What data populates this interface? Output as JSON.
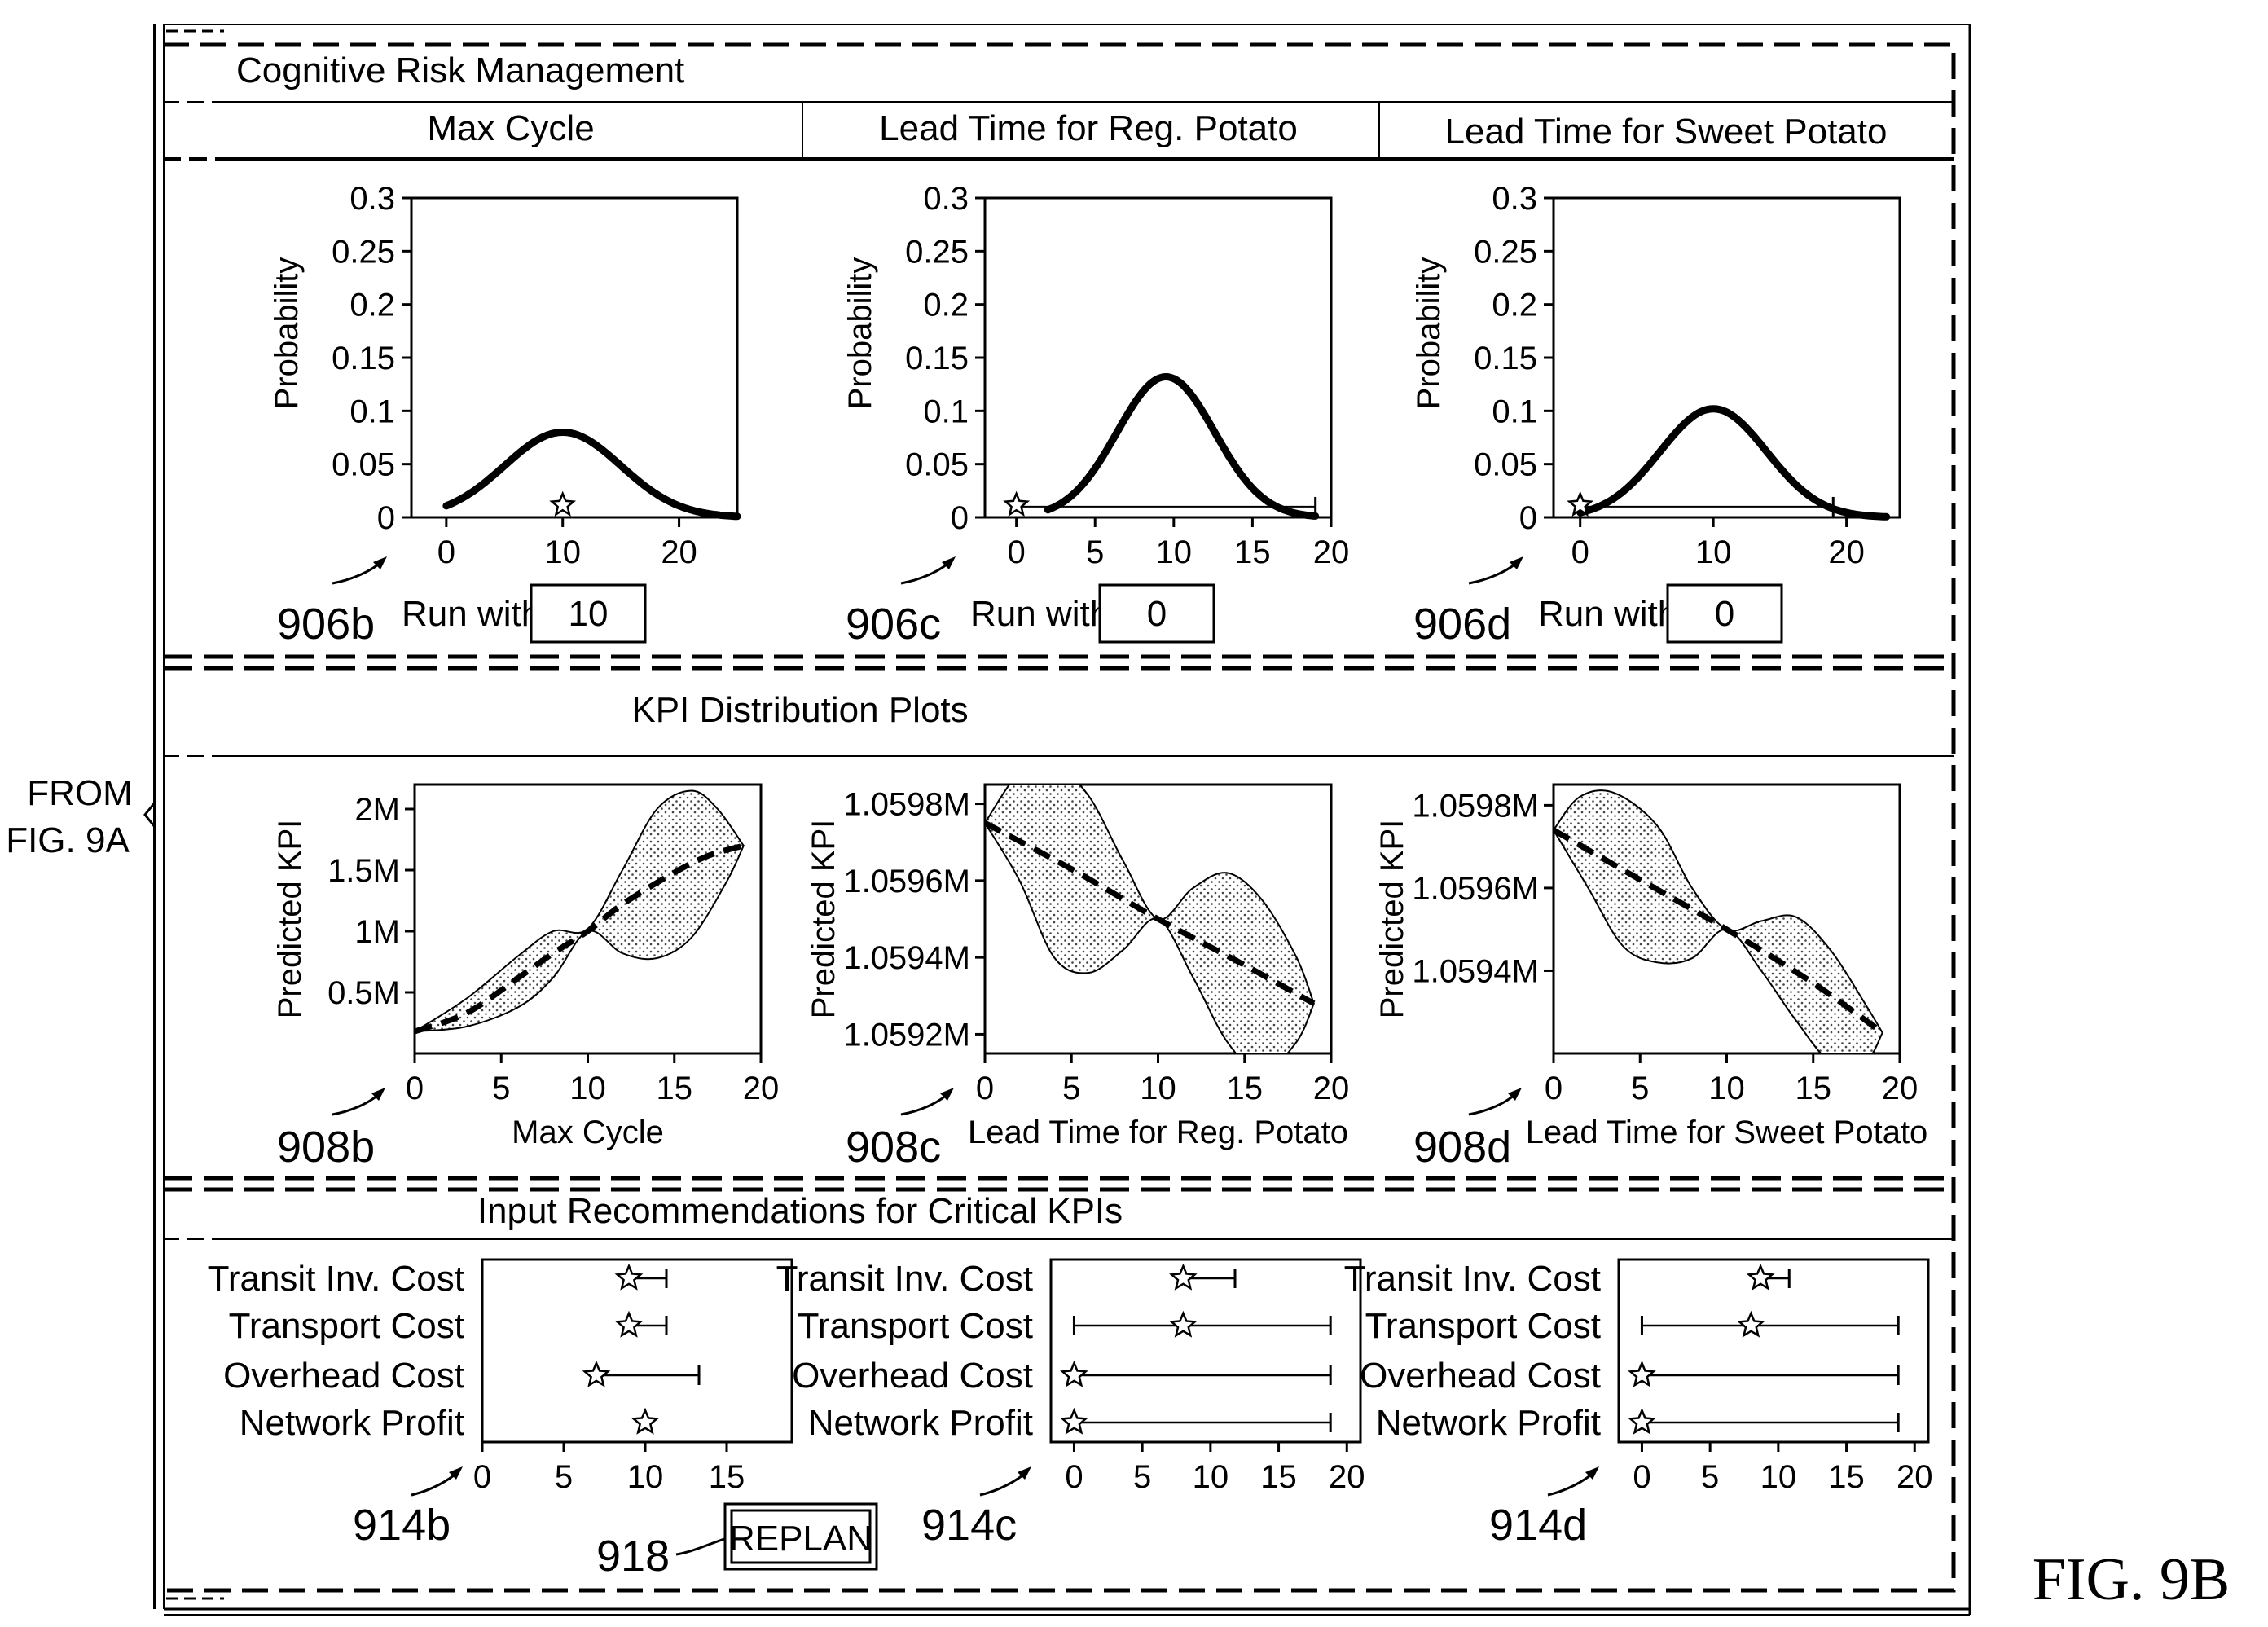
{
  "from_note": [
    "FROM",
    "FIG. 9A"
  ],
  "fig_label": "FIG. 9B",
  "header": {
    "title": "Cognitive Risk Management",
    "columns": [
      "Max Cycle",
      "Lead Time for Reg. Potato",
      "Lead Time for Sweet Potato"
    ]
  },
  "risk_panels": [
    {
      "ref": "906b",
      "run_label": "Run with",
      "run_value": "10"
    },
    {
      "ref": "906c",
      "run_label": "Run with",
      "run_value": "0"
    },
    {
      "ref": "906d",
      "run_label": "Run with",
      "run_value": "0"
    }
  ],
  "kpi_section": {
    "title": "KPI Distribution Plots"
  },
  "kpi_panels": [
    {
      "ref": "908b"
    },
    {
      "ref": "908c"
    },
    {
      "ref": "908d"
    }
  ],
  "rec_section": {
    "title": "Input Recommendations for Critical KPIs"
  },
  "rec_panels": [
    {
      "ref": "914b"
    },
    {
      "ref": "914c"
    },
    {
      "ref": "914d"
    }
  ],
  "replan": {
    "ref": "918",
    "label": "REPLAN"
  },
  "chart_data": [
    {
      "type": "line",
      "ylabel": "Probability",
      "xlim": [
        -3,
        25
      ],
      "ylim": [
        0,
        0.3
      ],
      "xticks": [
        0,
        10,
        20
      ],
      "yticks": [
        "0",
        "0.05",
        "0.1",
        "0.15",
        "0.2",
        "0.25",
        "0.3"
      ],
      "series": [
        {
          "curve": "normal",
          "mean": 10,
          "sd": 5,
          "peak": 0.08,
          "x_range": [
            0,
            25
          ]
        }
      ],
      "marker": {
        "x": 10,
        "y": 0.01
      },
      "range_bar": null
    },
    {
      "type": "line",
      "ylabel": "Probability",
      "xlim": [
        -2,
        20
      ],
      "ylim": [
        0,
        0.3
      ],
      "xticks": [
        0,
        5,
        10,
        15,
        20
      ],
      "yticks": [
        "0",
        "0.05",
        "0.1",
        "0.15",
        "0.2",
        "0.25",
        "0.3"
      ],
      "series": [
        {
          "curve": "normal",
          "mean": 9.5,
          "sd": 3.1,
          "peak": 0.132,
          "x_range": [
            2,
            19
          ]
        }
      ],
      "marker": {
        "x": 0,
        "y": 0.01
      },
      "range_bar": {
        "x0": 0,
        "x1": 19,
        "y": 0.01
      }
    },
    {
      "type": "line",
      "ylabel": "Probability",
      "xlim": [
        -2,
        24
      ],
      "ylim": [
        0,
        0.3
      ],
      "xticks": [
        0,
        10,
        20
      ],
      "yticks": [
        "0",
        "0.05",
        "0.1",
        "0.15",
        "0.2",
        "0.25",
        "0.3"
      ],
      "series": [
        {
          "curve": "normal",
          "mean": 10,
          "sd": 4,
          "peak": 0.102,
          "x_range": [
            0,
            23
          ]
        }
      ],
      "marker": {
        "x": 0,
        "y": 0.01
      },
      "range_bar": {
        "x0": 0,
        "x1": 19,
        "y": 0.01
      }
    },
    {
      "type": "area",
      "xlabel": "Max Cycle",
      "ylabel": "Predicted KPI",
      "xlim": [
        0,
        20
      ],
      "ylim": [
        0,
        2.2
      ],
      "xticks": [
        0,
        5,
        10,
        15,
        20
      ],
      "yticks": [
        {
          "v": 0.5,
          "label": "0.5M"
        },
        {
          "v": 1.0,
          "label": "1M"
        },
        {
          "v": 1.5,
          "label": "1.5M"
        },
        {
          "v": 2.0,
          "label": "2M"
        }
      ],
      "mean_line": [
        [
          0,
          0.18
        ],
        [
          3,
          0.33
        ],
        [
          6,
          0.62
        ],
        [
          8,
          0.82
        ],
        [
          10,
          1.0
        ],
        [
          12,
          1.22
        ],
        [
          15,
          1.48
        ],
        [
          17,
          1.62
        ],
        [
          19,
          1.7
        ]
      ],
      "upper": [
        [
          0,
          0.18
        ],
        [
          3,
          0.45
        ],
        [
          6,
          0.8
        ],
        [
          8,
          1.0
        ],
        [
          10,
          1.02
        ],
        [
          12,
          1.5
        ],
        [
          14,
          2.0
        ],
        [
          16,
          2.15
        ],
        [
          17.5,
          2.0
        ],
        [
          19,
          1.7
        ]
      ],
      "lower": [
        [
          0,
          0.18
        ],
        [
          3,
          0.22
        ],
        [
          6,
          0.38
        ],
        [
          8,
          0.62
        ],
        [
          10,
          1.0
        ],
        [
          12,
          0.82
        ],
        [
          14,
          0.78
        ],
        [
          16,
          0.95
        ],
        [
          18,
          1.4
        ],
        [
          19,
          1.7
        ]
      ]
    },
    {
      "type": "area",
      "xlabel": "Lead Time for Reg. Potato",
      "ylabel": "Predicted KPI",
      "xlim": [
        0,
        20
      ],
      "ylim": [
        1.05915,
        1.05985
      ],
      "xticks": [
        0,
        5,
        10,
        15,
        20
      ],
      "yticks": [
        {
          "v": 1.0592,
          "label": "1.0592M"
        },
        {
          "v": 1.0594,
          "label": "1.0594M"
        },
        {
          "v": 1.0596,
          "label": "1.0596M"
        },
        {
          "v": 1.0598,
          "label": "1.0598M"
        }
      ],
      "mean_line": [
        [
          0,
          1.05975
        ],
        [
          5,
          1.05963
        ],
        [
          10,
          1.0595
        ],
        [
          15,
          1.05938
        ],
        [
          19,
          1.05928
        ]
      ],
      "upper": [
        [
          0,
          1.05975
        ],
        [
          2,
          1.05988
        ],
        [
          4,
          1.0599
        ],
        [
          6,
          1.05982
        ],
        [
          8,
          1.05965
        ],
        [
          10,
          1.0595
        ],
        [
          12,
          1.05958
        ],
        [
          14,
          1.05962
        ],
        [
          16,
          1.05955
        ],
        [
          18,
          1.0594
        ],
        [
          19,
          1.05928
        ]
      ],
      "lower": [
        [
          0,
          1.05975
        ],
        [
          2,
          1.0596
        ],
        [
          4,
          1.0594
        ],
        [
          6,
          1.05936
        ],
        [
          8,
          1.05942
        ],
        [
          10,
          1.0595
        ],
        [
          12,
          1.05935
        ],
        [
          14,
          1.05918
        ],
        [
          16,
          1.0591
        ],
        [
          18,
          1.05918
        ],
        [
          19,
          1.05928
        ]
      ]
    },
    {
      "type": "area",
      "xlabel": "Lead Time for Sweet Potato",
      "ylabel": "Predicted KPI",
      "xlim": [
        0,
        20
      ],
      "ylim": [
        1.0592,
        1.05985
      ],
      "xticks": [
        0,
        5,
        10,
        15,
        20
      ],
      "yticks": [
        {
          "v": 1.0594,
          "label": "1.0594M"
        },
        {
          "v": 1.0596,
          "label": "1.0596M"
        },
        {
          "v": 1.0598,
          "label": "1.0598M"
        }
      ],
      "mean_line": [
        [
          0,
          1.05974
        ],
        [
          5,
          1.05962
        ],
        [
          10,
          1.0595
        ],
        [
          15,
          1.05937
        ],
        [
          19,
          1.05925
        ]
      ],
      "upper": [
        [
          0,
          1.05974
        ],
        [
          1.5,
          1.05982
        ],
        [
          3.5,
          1.05983
        ],
        [
          6,
          1.05975
        ],
        [
          8,
          1.0596
        ],
        [
          10,
          1.0595
        ],
        [
          12,
          1.05952
        ],
        [
          14,
          1.05953
        ],
        [
          16,
          1.05945
        ],
        [
          18,
          1.05932
        ],
        [
          19,
          1.05925
        ]
      ],
      "lower": [
        [
          0,
          1.05974
        ],
        [
          2,
          1.0596
        ],
        [
          4,
          1.05946
        ],
        [
          6,
          1.05942
        ],
        [
          8,
          1.05943
        ],
        [
          10,
          1.0595
        ],
        [
          12,
          1.0594
        ],
        [
          14,
          1.05928
        ],
        [
          16,
          1.05918
        ],
        [
          18,
          1.05918
        ],
        [
          19,
          1.05925
        ]
      ]
    },
    {
      "type": "scatter",
      "xlim": [
        0,
        19
      ],
      "xticks": [
        0,
        5,
        10,
        15
      ],
      "rows": [
        {
          "label": "Transit Inv. Cost",
          "star": 9,
          "lo": 9,
          "hi": 11.3
        },
        {
          "label": "Transport Cost",
          "star": 9,
          "lo": 9,
          "hi": 11.3
        },
        {
          "label": "Overhead Cost",
          "star": 7,
          "lo": 7,
          "hi": 13.3
        },
        {
          "label": "Network Profit",
          "star": 10,
          "lo": null,
          "hi": null
        }
      ]
    },
    {
      "type": "scatter",
      "xlim": [
        -1.7,
        21
      ],
      "xticks": [
        0,
        5,
        10,
        15,
        20
      ],
      "rows": [
        {
          "label": "Transit Inv. Cost",
          "star": 8,
          "lo": 8,
          "hi": 11.8
        },
        {
          "label": "Transport Cost",
          "star": 8,
          "lo": 0,
          "hi": 18.8
        },
        {
          "label": "Overhead Cost",
          "star": 0,
          "lo": 0,
          "hi": 18.8
        },
        {
          "label": "Network Profit",
          "star": 0,
          "lo": 0,
          "hi": 18.8
        }
      ]
    },
    {
      "type": "scatter",
      "xlim": [
        -1.7,
        21
      ],
      "xticks": [
        0,
        5,
        10,
        15,
        20
      ],
      "rows": [
        {
          "label": "Transit Inv. Cost",
          "star": 8.7,
          "lo": 8.7,
          "hi": 10.8
        },
        {
          "label": "Transport Cost",
          "star": 8,
          "lo": 0,
          "hi": 18.8
        },
        {
          "label": "Overhead Cost",
          "star": 0,
          "lo": 0,
          "hi": 18.8
        },
        {
          "label": "Network Profit",
          "star": 0,
          "lo": 0,
          "hi": 18.8
        }
      ]
    }
  ]
}
